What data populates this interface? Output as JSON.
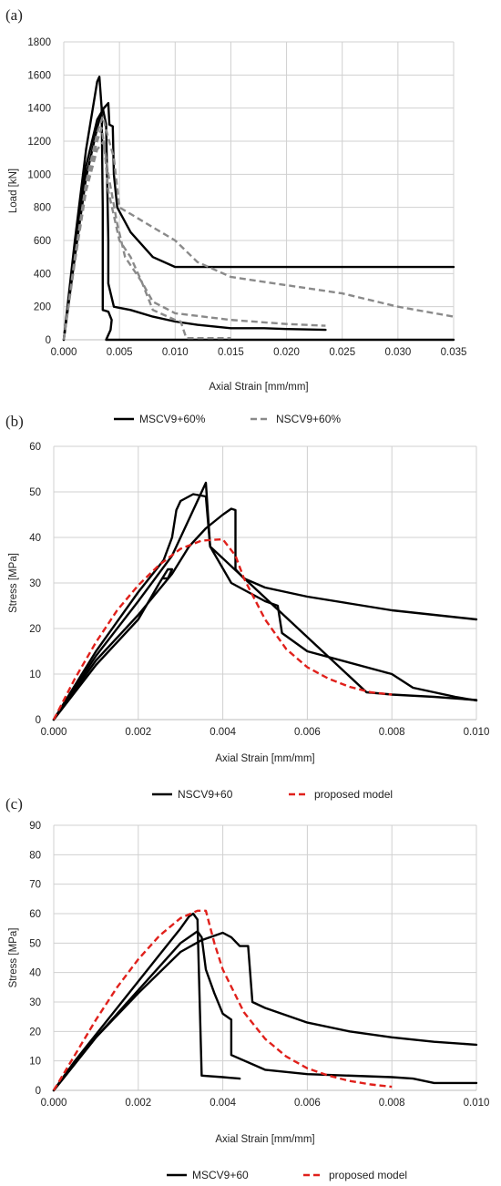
{
  "chart_data": [
    {
      "panel_label": "(a)",
      "type": "line",
      "title": "",
      "xlabel": "Axial Strain [mm/mm]",
      "ylabel": "Load [kN]",
      "xlim": [
        0,
        0.035
      ],
      "ylim": [
        0,
        1800
      ],
      "xticks": [
        "0.000",
        "0.005",
        "0.010",
        "0.015",
        "0.020",
        "0.025",
        "0.030",
        "0.035"
      ],
      "yticks": [
        "0",
        "200",
        "400",
        "600",
        "800",
        "1000",
        "1200",
        "1400",
        "1600",
        "1800"
      ],
      "grid": true,
      "legend": {
        "placement": "bottom"
      },
      "colors": {
        "MSCV9+60%": "#000000",
        "NSCV9+60%": "#8a8a8a"
      },
      "series": [
        {
          "name": "MSCV9+60%",
          "legend": true,
          "style": "solid",
          "points": [
            [
              0,
              0
            ],
            [
              0.001,
              600
            ],
            [
              0.002,
              1150
            ],
            [
              0.003,
              1560
            ],
            [
              0.0032,
              1590
            ],
            [
              0.0034,
              1400
            ],
            [
              0.0035,
              800
            ],
            [
              0.0035,
              180
            ],
            [
              0.004,
              170
            ],
            [
              0.0043,
              120
            ],
            [
              0.0042,
              60
            ],
            [
              0.0038,
              0
            ],
            [
              0.01,
              0
            ],
            [
              0.035,
              0
            ]
          ]
        },
        {
          "name": "MSCV9+60%",
          "legend": false,
          "style": "solid",
          "points": [
            [
              0,
              0
            ],
            [
              0.001,
              550
            ],
            [
              0.002,
              1050
            ],
            [
              0.003,
              1330
            ],
            [
              0.0036,
              1400
            ],
            [
              0.004,
              1430
            ],
            [
              0.0041,
              1300
            ],
            [
              0.0044,
              1290
            ],
            [
              0.0045,
              1000
            ],
            [
              0.0048,
              800
            ],
            [
              0.006,
              650
            ],
            [
              0.008,
              500
            ],
            [
              0.01,
              440
            ],
            [
              0.035,
              440
            ]
          ]
        },
        {
          "name": "MSCV9+60%",
          "legend": false,
          "style": "solid",
          "points": [
            [
              0,
              0
            ],
            [
              0.001,
              500
            ],
            [
              0.002,
              980
            ],
            [
              0.003,
              1280
            ],
            [
              0.0035,
              1400
            ],
            [
              0.0038,
              1300
            ],
            [
              0.004,
              600
            ],
            [
              0.004,
              340
            ],
            [
              0.0045,
              200
            ],
            [
              0.006,
              180
            ],
            [
              0.008,
              140
            ],
            [
              0.01,
              110
            ],
            [
              0.012,
              90
            ],
            [
              0.015,
              70
            ],
            [
              0.018,
              70
            ],
            [
              0.02,
              65
            ],
            [
              0.0235,
              60
            ]
          ]
        },
        {
          "name": "NSCV9+60%",
          "legend": true,
          "style": "dashed",
          "points": [
            [
              0,
              0
            ],
            [
              0.001,
              500
            ],
            [
              0.002,
              950
            ],
            [
              0.003,
              1250
            ],
            [
              0.0035,
              1350
            ],
            [
              0.004,
              1220
            ],
            [
              0.0045,
              1100
            ],
            [
              0.005,
              800
            ],
            [
              0.006,
              760
            ],
            [
              0.008,
              680
            ],
            [
              0.01,
              600
            ],
            [
              0.012,
              470
            ],
            [
              0.015,
              380
            ],
            [
              0.02,
              330
            ],
            [
              0.025,
              280
            ],
            [
              0.03,
              200
            ],
            [
              0.035,
              140
            ]
          ]
        },
        {
          "name": "NSCV9+60%",
          "legend": false,
          "style": "dashed",
          "points": [
            [
              0,
              0
            ],
            [
              0.001,
              480
            ],
            [
              0.002,
              920
            ],
            [
              0.003,
              1200
            ],
            [
              0.0034,
              1280
            ],
            [
              0.004,
              1000
            ],
            [
              0.0048,
              700
            ],
            [
              0.0055,
              500
            ],
            [
              0.007,
              350
            ],
            [
              0.008,
              230
            ],
            [
              0.01,
              160
            ],
            [
              0.015,
              120
            ],
            [
              0.02,
              95
            ],
            [
              0.0235,
              85
            ]
          ]
        },
        {
          "name": "NSCV9+60%",
          "legend": false,
          "style": "dashed",
          "points": [
            [
              0,
              0
            ],
            [
              0.001,
              470
            ],
            [
              0.002,
              900
            ],
            [
              0.003,
              1150
            ],
            [
              0.0036,
              1200
            ],
            [
              0.004,
              900
            ],
            [
              0.005,
              600
            ],
            [
              0.006,
              500
            ],
            [
              0.007,
              350
            ],
            [
              0.008,
              180
            ],
            [
              0.01,
              120
            ],
            [
              0.0105,
              110
            ],
            [
              0.011,
              10
            ],
            [
              0.015,
              10
            ]
          ]
        }
      ]
    },
    {
      "panel_label": "(b)",
      "type": "line",
      "title": "",
      "xlabel": "Axial Strain [mm/mm]",
      "ylabel": "Stress [MPa]",
      "xlim": [
        0,
        0.01
      ],
      "ylim": [
        0,
        60
      ],
      "xticks": [
        "0.000",
        "0.002",
        "0.004",
        "0.006",
        "0.008",
        "0.010"
      ],
      "yticks": [
        "0",
        "10",
        "20",
        "30",
        "40",
        "50",
        "60"
      ],
      "grid": true,
      "legend": {
        "placement": "bottom"
      },
      "colors": {
        "NSCV9+60": "#000000",
        "proposed model": "#e0201b"
      },
      "series": [
        {
          "name": "NSCV9+60",
          "legend": true,
          "style": "solid",
          "points": [
            [
              0,
              0
            ],
            [
              0.001,
              15
            ],
            [
              0.002,
              28
            ],
            [
              0.0026,
              35
            ],
            [
              0.0028,
              40
            ],
            [
              0.0029,
              46
            ],
            [
              0.003,
              48
            ],
            [
              0.0033,
              49.5
            ],
            [
              0.0036,
              49
            ],
            [
              0.0037,
              38
            ],
            [
              0.0042,
              30
            ],
            [
              0.005,
              26
            ],
            [
              0.0053,
              25
            ],
            [
              0.0054,
              19
            ],
            [
              0.006,
              15
            ],
            [
              0.008,
              10
            ],
            [
              0.0085,
              7
            ],
            [
              0.009,
              6
            ],
            [
              0.0095,
              5
            ],
            [
              0.01,
              4.2
            ]
          ]
        },
        {
          "name": "NSCV9+60",
          "legend": false,
          "style": "solid",
          "points": [
            [
              0,
              0
            ],
            [
              0.001,
              14
            ],
            [
              0.002,
              26
            ],
            [
              0.0028,
              36
            ],
            [
              0.0032,
              44
            ],
            [
              0.0036,
              52
            ],
            [
              0.0037,
              38
            ],
            [
              0.0074,
              6
            ],
            [
              0.008,
              5.5
            ],
            [
              0.009,
              5
            ],
            [
              0.01,
              4.3
            ]
          ]
        },
        {
          "name": "NSCV9+60",
          "legend": false,
          "style": "solid",
          "points": [
            [
              0,
              0
            ],
            [
              0.001,
              13
            ],
            [
              0.002,
              23
            ],
            [
              0.0028,
              32
            ],
            [
              0.0032,
              38
            ],
            [
              0.0036,
              42
            ],
            [
              0.004,
              45
            ],
            [
              0.0042,
              46.3
            ],
            [
              0.0043,
              46
            ],
            [
              0.0043,
              33
            ],
            [
              0.0045,
              31
            ],
            [
              0.005,
              29
            ],
            [
              0.006,
              27
            ],
            [
              0.007,
              25.5
            ],
            [
              0.008,
              24
            ],
            [
              0.009,
              23
            ],
            [
              0.01,
              22
            ]
          ]
        },
        {
          "name": "NSCV9+60",
          "legend": false,
          "style": "solid",
          "points": [
            [
              0,
              0
            ],
            [
              0.001,
              12
            ],
            [
              0.002,
              22
            ],
            [
              0.0025,
              30
            ],
            [
              0.0027,
              33
            ],
            [
              0.0028,
              33
            ],
            [
              0.0027,
              31
            ],
            [
              0.0026,
              31
            ]
          ]
        },
        {
          "name": "proposed model",
          "legend": true,
          "style": "dashed",
          "points": [
            [
              0,
              0
            ],
            [
              0.0005,
              9
            ],
            [
              0.001,
              17
            ],
            [
              0.0015,
              24
            ],
            [
              0.002,
              29.5
            ],
            [
              0.0025,
              34
            ],
            [
              0.003,
              37.5
            ],
            [
              0.0035,
              39.3
            ],
            [
              0.004,
              39.6
            ],
            [
              0.0043,
              36
            ],
            [
              0.0045,
              31
            ],
            [
              0.005,
              22
            ],
            [
              0.0055,
              15.5
            ],
            [
              0.006,
              11.5
            ],
            [
              0.0065,
              9
            ],
            [
              0.007,
              7.2
            ],
            [
              0.0075,
              6
            ],
            [
              0.008,
              5.5
            ]
          ]
        }
      ]
    },
    {
      "panel_label": "(c)",
      "type": "line",
      "title": "",
      "xlabel": "Axial Strain [mm/mm]",
      "ylabel": "Stress [MPa]",
      "xlim": [
        0,
        0.01
      ],
      "ylim": [
        0,
        90
      ],
      "xticks": [
        "0.000",
        "0.002",
        "0.004",
        "0.006",
        "0.008",
        "0.010"
      ],
      "yticks": [
        "0",
        "10",
        "20",
        "30",
        "40",
        "50",
        "60",
        "70",
        "80",
        "90"
      ],
      "grid": true,
      "legend": {
        "placement": "bottom"
      },
      "colors": {
        "MSCV9+60": "#000000",
        "proposed model": "#e0201b"
      },
      "series": [
        {
          "name": "MSCV9+60",
          "legend": true,
          "style": "solid",
          "points": [
            [
              0,
              0
            ],
            [
              0.0005,
              10
            ],
            [
              0.001,
              19
            ],
            [
              0.0015,
              28
            ],
            [
              0.002,
              37
            ],
            [
              0.0025,
              46
            ],
            [
              0.003,
              55
            ],
            [
              0.0032,
              59
            ],
            [
              0.0033,
              60
            ],
            [
              0.0034,
              58
            ],
            [
              0.0035,
              5
            ],
            [
              0.004,
              4.5
            ],
            [
              0.0044,
              4
            ]
          ]
        },
        {
          "name": "MSCV9+60",
          "legend": false,
          "style": "solid",
          "points": [
            [
              0,
              0
            ],
            [
              0.001,
              18
            ],
            [
              0.002,
              34
            ],
            [
              0.003,
              50
            ],
            [
              0.0034,
              54
            ],
            [
              0.0035,
              52
            ],
            [
              0.0036,
              41
            ],
            [
              0.0038,
              33
            ],
            [
              0.004,
              26
            ],
            [
              0.0042,
              24
            ],
            [
              0.0042,
              12
            ],
            [
              0.005,
              7
            ],
            [
              0.006,
              5.5
            ],
            [
              0.008,
              4.5
            ],
            [
              0.0085,
              4
            ],
            [
              0.009,
              2.5
            ],
            [
              0.01,
              2.5
            ]
          ]
        },
        {
          "name": "MSCV9+60",
          "legend": false,
          "style": "solid",
          "points": [
            [
              0,
              0
            ],
            [
              0.001,
              18
            ],
            [
              0.002,
              33
            ],
            [
              0.003,
              47
            ],
            [
              0.0035,
              51
            ],
            [
              0.004,
              53.5
            ],
            [
              0.0042,
              52
            ],
            [
              0.0044,
              49
            ],
            [
              0.0046,
              49
            ],
            [
              0.0047,
              30
            ],
            [
              0.005,
              28
            ],
            [
              0.006,
              23
            ],
            [
              0.007,
              20
            ],
            [
              0.008,
              18
            ],
            [
              0.009,
              16.5
            ],
            [
              0.01,
              15.5
            ]
          ]
        },
        {
          "name": "proposed model",
          "legend": true,
          "style": "dashed",
          "points": [
            [
              0,
              0
            ],
            [
              0.0005,
              12
            ],
            [
              0.001,
              24
            ],
            [
              0.0015,
              35
            ],
            [
              0.002,
              44.5
            ],
            [
              0.0025,
              52.5
            ],
            [
              0.003,
              58.5
            ],
            [
              0.0034,
              61
            ],
            [
              0.0036,
              61
            ],
            [
              0.0038,
              50
            ],
            [
              0.004,
              41
            ],
            [
              0.0045,
              26.5
            ],
            [
              0.005,
              17.5
            ],
            [
              0.0055,
              11.5
            ],
            [
              0.006,
              7.5
            ],
            [
              0.0065,
              5
            ],
            [
              0.007,
              3.2
            ],
            [
              0.0075,
              2
            ],
            [
              0.008,
              1.2
            ]
          ]
        }
      ]
    }
  ]
}
